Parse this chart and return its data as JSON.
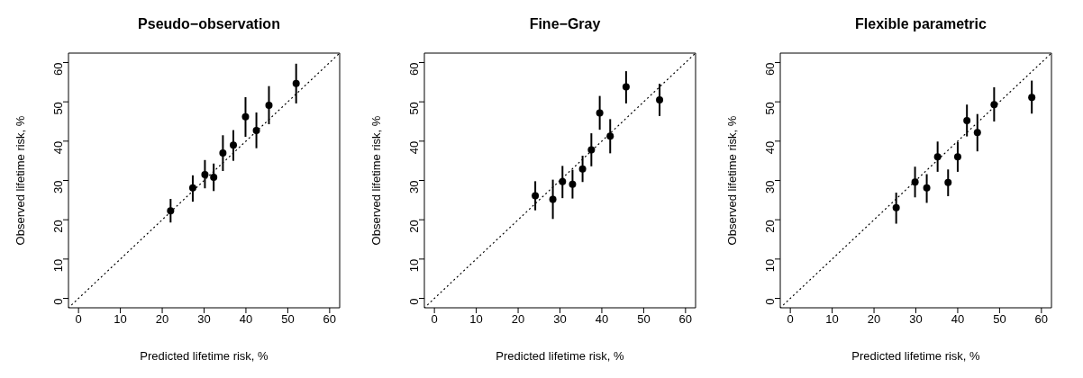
{
  "chart_data": [
    {
      "type": "scatter",
      "title": "Pseudo−observation",
      "xlabel": "Predicted lifetime risk, %",
      "ylabel": "Observed lifetime risk, %",
      "xlim": [
        -2.4,
        62.4
      ],
      "ylim": [
        -2.4,
        62.4
      ],
      "xticks": [
        0,
        10,
        20,
        30,
        40,
        50,
        60
      ],
      "yticks": [
        0,
        10,
        20,
        30,
        40,
        50,
        60
      ],
      "series": [
        {
          "type": "line",
          "color": "#000000",
          "line_style": "dotted",
          "marker": "none",
          "x": [
            -2.4,
            62.4
          ],
          "values": [
            -2.4,
            62.4
          ]
        },
        {
          "type": "scatter",
          "color": "#000000",
          "marker": "circle",
          "x": [
            22,
            27.3,
            30.2,
            32.3,
            34.5,
            37,
            39.9,
            42.5,
            45.5,
            52
          ],
          "values": [
            22.3,
            28.1,
            31.5,
            30.8,
            37,
            39,
            46.2,
            42.7,
            49.1,
            54.7
          ],
          "errors": [
            [
              19.3,
              25.3
            ],
            [
              24.6,
              31.3
            ],
            [
              28,
              35.2
            ],
            [
              27.3,
              34.3
            ],
            [
              32.4,
              41.5
            ],
            [
              35,
              42.8
            ],
            [
              41.1,
              51.2
            ],
            [
              38.2,
              47.3
            ],
            [
              44.3,
              54
            ],
            [
              49.6,
              59.7
            ]
          ]
        }
      ]
    },
    {
      "type": "scatter",
      "title": "Fine−Gray",
      "xlabel": "Predicted lifetime risk, %",
      "ylabel": "Observed lifetime risk, %",
      "xlim": [
        -2.4,
        62.4
      ],
      "ylim": [
        -2.4,
        62.4
      ],
      "xticks": [
        0,
        10,
        20,
        30,
        40,
        50,
        60
      ],
      "yticks": [
        0,
        10,
        20,
        30,
        40,
        50,
        60
      ],
      "series": [
        {
          "type": "line",
          "color": "#000000",
          "line_style": "dotted",
          "marker": "none",
          "x": [
            -2.4,
            62.4
          ],
          "values": [
            -2.4,
            62.4
          ]
        },
        {
          "type": "scatter",
          "color": "#000000",
          "marker": "circle",
          "x": [
            24.1,
            28.3,
            30.6,
            33,
            35.4,
            37.5,
            39.5,
            42,
            45.8,
            53.8
          ],
          "values": [
            26.1,
            25.2,
            29.7,
            29,
            32.9,
            37.8,
            47.2,
            41.3,
            53.8,
            50.5
          ],
          "errors": [
            [
              22.4,
              29.8
            ],
            [
              20.2,
              30.2
            ],
            [
              25.5,
              33.7
            ],
            [
              25.4,
              32.7
            ],
            [
              29.6,
              36.3
            ],
            [
              33.6,
              42
            ],
            [
              42.9,
              51.5
            ],
            [
              36.9,
              45.6
            ],
            [
              49.6,
              57.8
            ],
            [
              46.4,
              54.6
            ]
          ]
        }
      ]
    },
    {
      "type": "scatter",
      "title": "Flexible parametric",
      "xlabel": "Predicted lifetime risk, %",
      "ylabel": "Observed lifetime risk, %",
      "xlim": [
        -2.4,
        62.4
      ],
      "ylim": [
        -2.4,
        62.4
      ],
      "xticks": [
        0,
        10,
        20,
        30,
        40,
        50,
        60
      ],
      "yticks": [
        0,
        10,
        20,
        30,
        40,
        50,
        60
      ],
      "series": [
        {
          "type": "line",
          "color": "#000000",
          "line_style": "dotted",
          "marker": "none",
          "x": [
            -2.4,
            62.4
          ],
          "values": [
            -2.4,
            62.4
          ]
        },
        {
          "type": "scatter",
          "color": "#000000",
          "marker": "circle",
          "x": [
            25.3,
            29.8,
            32.6,
            35.2,
            37.7,
            40,
            42.2,
            44.7,
            48.7,
            57.7
          ],
          "values": [
            23.1,
            29.6,
            28.1,
            36,
            29.5,
            36,
            45.2,
            42.2,
            49.3,
            51.1
          ],
          "errors": [
            [
              19,
              26.9
            ],
            [
              25.7,
              33.5
            ],
            [
              24.3,
              31.6
            ],
            [
              32.2,
              39.9
            ],
            [
              26,
              32.8
            ],
            [
              32.2,
              39.8
            ],
            [
              41.2,
              49.3
            ],
            [
              37.4,
              46.9
            ],
            [
              45,
              53.7
            ],
            [
              47,
              55.4
            ]
          ]
        }
      ]
    }
  ]
}
